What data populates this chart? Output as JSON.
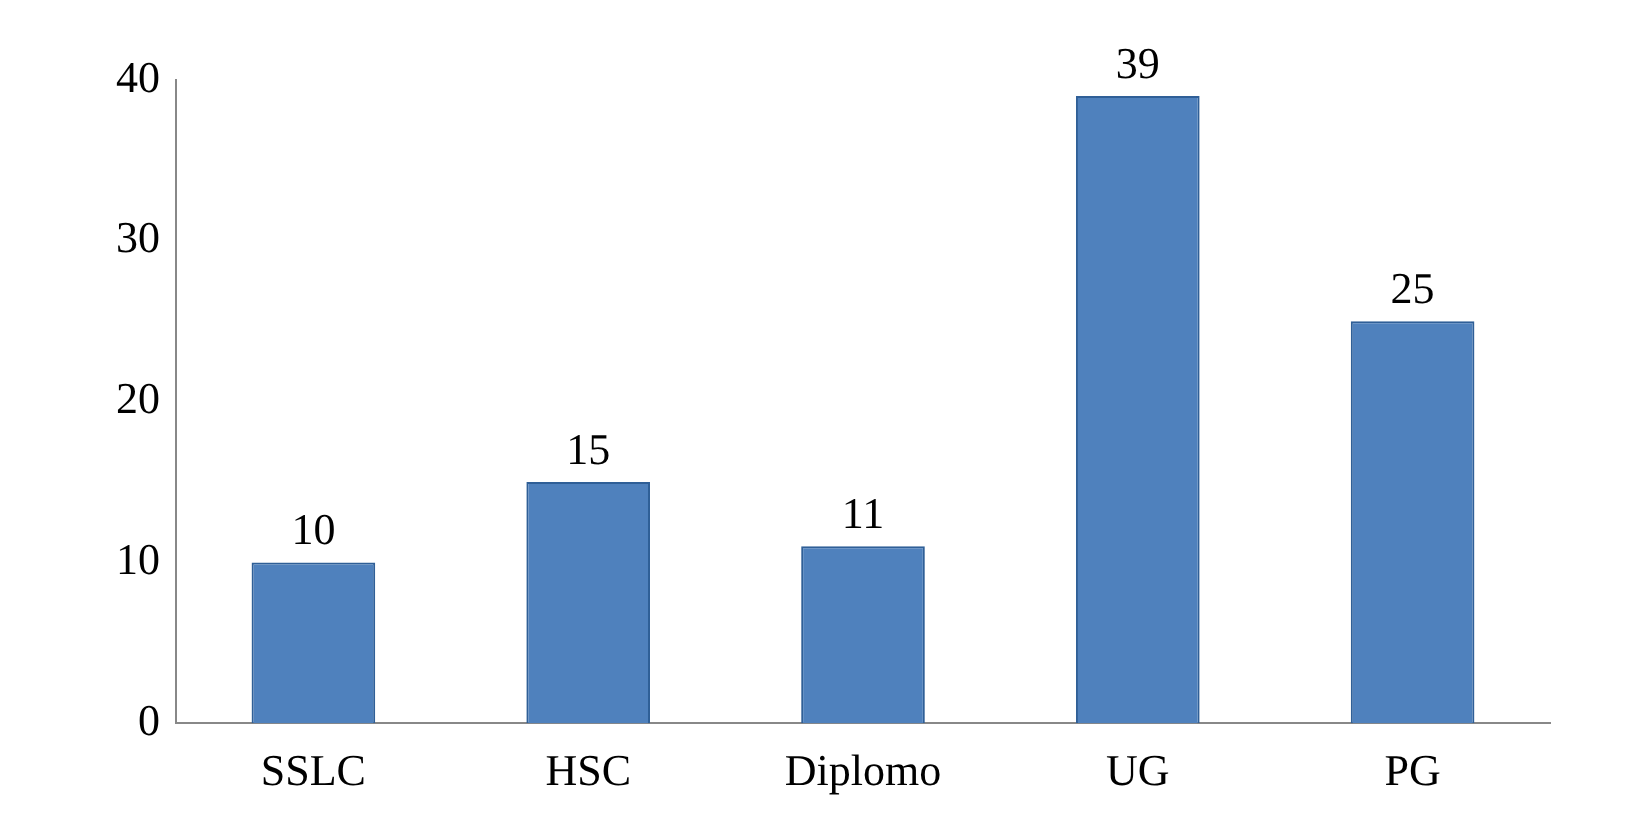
{
  "chart_data": {
    "type": "bar",
    "categories": [
      "SSLC",
      "HSC",
      "Diplomo",
      "UG",
      "PG"
    ],
    "values": [
      10,
      15,
      11,
      39,
      25
    ],
    "color": "#4f81bd",
    "ylim": [
      0,
      40
    ],
    "yticks": [
      0,
      10,
      20,
      30,
      40
    ],
    "grid": false,
    "data_labels": true
  }
}
